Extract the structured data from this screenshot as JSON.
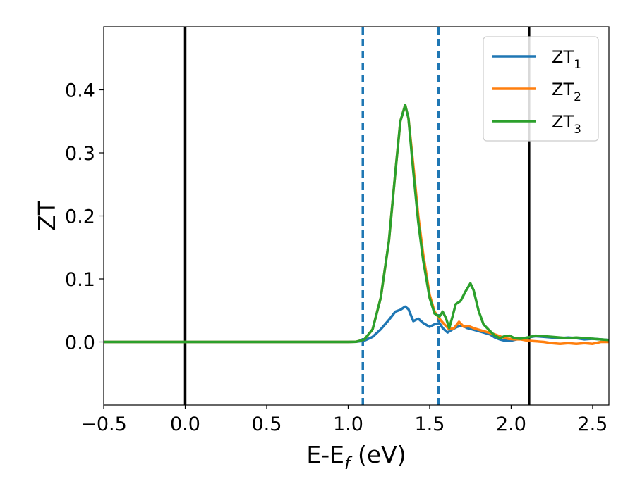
{
  "chart_data": {
    "type": "line",
    "title": "",
    "xlabel": {
      "main": "E-E",
      "sub": "f",
      "tail": " (eV)"
    },
    "ylabel": "ZT",
    "xlim": [
      -0.5,
      2.6
    ],
    "ylim": [
      -0.1,
      0.5
    ],
    "xticks": [
      -0.5,
      0.0,
      0.5,
      1.0,
      1.5,
      2.0,
      2.5
    ],
    "xtick_labels": [
      "−0.5",
      "0.0",
      "0.5",
      "1.0",
      "1.5",
      "2.0",
      "2.5"
    ],
    "yticks": [
      0.0,
      0.1,
      0.2,
      0.3,
      0.4
    ],
    "ytick_labels": [
      "0.0",
      "0.1",
      "0.2",
      "0.3",
      "0.4"
    ],
    "grid": false,
    "legend_position": "top-right",
    "vlines": [
      {
        "x": 0.0,
        "style": "solid",
        "color": "#000000"
      },
      {
        "x": 2.11,
        "style": "solid",
        "color": "#000000"
      },
      {
        "x": 1.09,
        "style": "dashed",
        "color": "#1f77b4"
      },
      {
        "x": 1.555,
        "style": "dashed",
        "color": "#1f77b4"
      }
    ],
    "series": [
      {
        "name": "ZT",
        "sub": "1",
        "color": "#1f77b4",
        "points": [
          [
            -0.5,
            0
          ],
          [
            1.0,
            0
          ],
          [
            1.05,
            0.0003
          ],
          [
            1.1,
            0.002
          ],
          [
            1.15,
            0.008
          ],
          [
            1.2,
            0.02
          ],
          [
            1.25,
            0.035
          ],
          [
            1.29,
            0.048
          ],
          [
            1.32,
            0.051
          ],
          [
            1.35,
            0.056
          ],
          [
            1.37,
            0.052
          ],
          [
            1.4,
            0.033
          ],
          [
            1.43,
            0.037
          ],
          [
            1.46,
            0.03
          ],
          [
            1.5,
            0.024
          ],
          [
            1.53,
            0.028
          ],
          [
            1.56,
            0.03
          ],
          [
            1.58,
            0.022
          ],
          [
            1.61,
            0.015
          ],
          [
            1.64,
            0.02
          ],
          [
            1.67,
            0.024
          ],
          [
            1.7,
            0.026
          ],
          [
            1.73,
            0.022
          ],
          [
            1.76,
            0.02
          ],
          [
            1.79,
            0.018
          ],
          [
            1.83,
            0.015
          ],
          [
            1.87,
            0.012
          ],
          [
            1.9,
            0.007
          ],
          [
            1.93,
            0.004
          ],
          [
            1.96,
            0.002
          ],
          [
            2.0,
            0.002
          ],
          [
            2.05,
            0.005
          ],
          [
            2.1,
            0.007
          ],
          [
            2.15,
            0.009
          ],
          [
            2.2,
            0.008
          ],
          [
            2.25,
            0.007
          ],
          [
            2.3,
            0.006
          ],
          [
            2.35,
            0.007
          ],
          [
            2.4,
            0.006
          ],
          [
            2.45,
            0.004
          ],
          [
            2.5,
            0.005
          ],
          [
            2.55,
            0.004
          ],
          [
            2.6,
            0.003
          ]
        ]
      },
      {
        "name": "ZT",
        "sub": "2",
        "color": "#ff7f0e",
        "points": [
          [
            -0.5,
            0
          ],
          [
            1.0,
            0
          ],
          [
            1.05,
            0.0003
          ],
          [
            1.1,
            0.004
          ],
          [
            1.15,
            0.02
          ],
          [
            1.2,
            0.07
          ],
          [
            1.25,
            0.16
          ],
          [
            1.29,
            0.27
          ],
          [
            1.32,
            0.35
          ],
          [
            1.35,
            0.376
          ],
          [
            1.37,
            0.355
          ],
          [
            1.4,
            0.28
          ],
          [
            1.43,
            0.2
          ],
          [
            1.46,
            0.14
          ],
          [
            1.5,
            0.075
          ],
          [
            1.53,
            0.048
          ],
          [
            1.56,
            0.037
          ],
          [
            1.59,
            0.028
          ],
          [
            1.62,
            0.02
          ],
          [
            1.65,
            0.022
          ],
          [
            1.68,
            0.032
          ],
          [
            1.71,
            0.024
          ],
          [
            1.74,
            0.025
          ],
          [
            1.78,
            0.021
          ],
          [
            1.82,
            0.018
          ],
          [
            1.86,
            0.015
          ],
          [
            1.9,
            0.012
          ],
          [
            1.94,
            0.008
          ],
          [
            1.98,
            0.005
          ],
          [
            2.02,
            0.004
          ],
          [
            2.06,
            0.004
          ],
          [
            2.1,
            0.002
          ],
          [
            2.15,
            0.001
          ],
          [
            2.2,
            0.0
          ],
          [
            2.25,
            -0.002
          ],
          [
            2.3,
            -0.003
          ],
          [
            2.35,
            -0.002
          ],
          [
            2.4,
            -0.003
          ],
          [
            2.45,
            -0.002
          ],
          [
            2.5,
            -0.003
          ],
          [
            2.55,
            0.0
          ],
          [
            2.6,
            0.0
          ]
        ]
      },
      {
        "name": "ZT",
        "sub": "3",
        "color": "#2ca02c",
        "points": [
          [
            -0.5,
            0
          ],
          [
            1.0,
            0
          ],
          [
            1.05,
            0.0003
          ],
          [
            1.1,
            0.004
          ],
          [
            1.15,
            0.02
          ],
          [
            1.2,
            0.07
          ],
          [
            1.25,
            0.16
          ],
          [
            1.29,
            0.27
          ],
          [
            1.32,
            0.35
          ],
          [
            1.35,
            0.376
          ],
          [
            1.37,
            0.355
          ],
          [
            1.4,
            0.27
          ],
          [
            1.43,
            0.19
          ],
          [
            1.46,
            0.13
          ],
          [
            1.5,
            0.07
          ],
          [
            1.53,
            0.045
          ],
          [
            1.56,
            0.04
          ],
          [
            1.58,
            0.048
          ],
          [
            1.6,
            0.038
          ],
          [
            1.62,
            0.022
          ],
          [
            1.64,
            0.04
          ],
          [
            1.66,
            0.06
          ],
          [
            1.69,
            0.065
          ],
          [
            1.72,
            0.08
          ],
          [
            1.75,
            0.093
          ],
          [
            1.77,
            0.082
          ],
          [
            1.8,
            0.05
          ],
          [
            1.83,
            0.028
          ],
          [
            1.86,
            0.02
          ],
          [
            1.9,
            0.01
          ],
          [
            1.93,
            0.006
          ],
          [
            1.96,
            0.009
          ],
          [
            1.99,
            0.01
          ],
          [
            2.02,
            0.006
          ],
          [
            2.06,
            0.005
          ],
          [
            2.1,
            0.007
          ],
          [
            2.15,
            0.01
          ],
          [
            2.2,
            0.009
          ],
          [
            2.25,
            0.008
          ],
          [
            2.3,
            0.007
          ],
          [
            2.35,
            0.006
          ],
          [
            2.4,
            0.007
          ],
          [
            2.45,
            0.006
          ],
          [
            2.5,
            0.005
          ],
          [
            2.55,
            0.004
          ],
          [
            2.6,
            0.003
          ]
        ]
      }
    ]
  }
}
